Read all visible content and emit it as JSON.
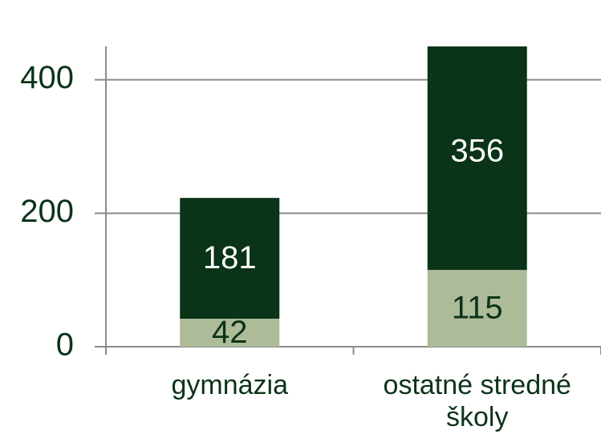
{
  "chart_data": {
    "type": "stacked_bar",
    "categories": [
      "gymnázia",
      "ostatné stredné školy"
    ],
    "series": [
      {
        "color": "#aebb99",
        "label_color": "#0b3318",
        "values": [
          42,
          115
        ]
      },
      {
        "color": "#0b3318",
        "label_color": "#ffffff",
        "values": [
          181,
          356
        ]
      }
    ],
    "ylim": [
      0,
      450
    ],
    "yticks": [
      0,
      200,
      400
    ],
    "grid": true
  }
}
